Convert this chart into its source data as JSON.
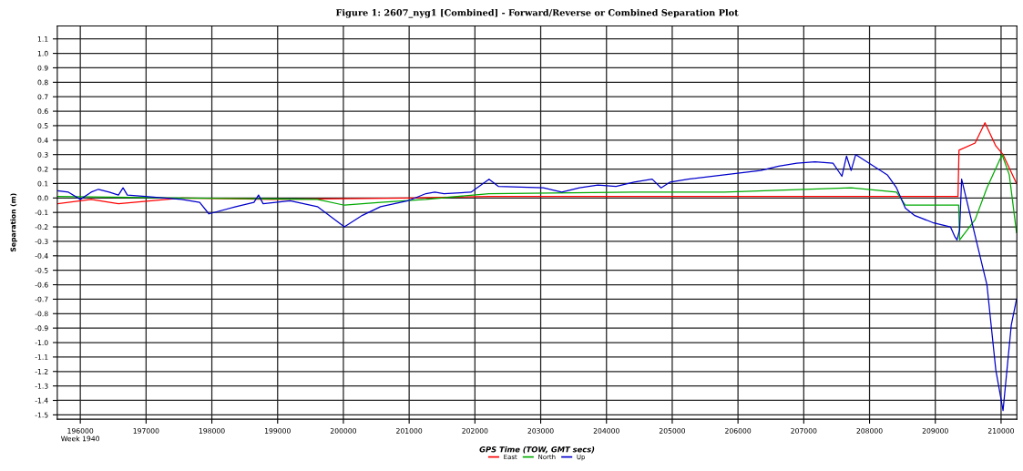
{
  "chart_data": {
    "type": "line",
    "title": "Figure 1: 2607_nyg1 [Combined] - Forward/Reverse or Combined Separation Plot",
    "xlabel": "GPS Time (TOW, GMT secs)",
    "ylabel": "Separation (m)",
    "xlim": [
      195650,
      210240
    ],
    "xticks": [
      {
        "value": 196000,
        "label": "196000\nWeek 1940"
      },
      197000,
      198000,
      199000,
      200000,
      201000,
      202000,
      203000,
      204000,
      205000,
      206000,
      207000,
      208000,
      209000,
      210000
    ],
    "ylim": [
      -1.53,
      1.19
    ],
    "yticks": [
      1.1,
      {
        "value": 1,
        "label": "1.0"
      },
      0.9,
      0.8,
      0.7,
      0.6,
      0.5,
      0.4,
      0.3,
      0.2,
      0.1,
      {
        "value": 0,
        "label": "0.0"
      },
      -0.1,
      -0.2,
      -0.3,
      -0.4,
      -0.5,
      -0.6,
      -0.7,
      -0.8,
      -0.9,
      {
        "value": -1,
        "label": "-1.0"
      },
      -1.1,
      -1.2,
      -1.3,
      -1.4,
      -1.5
    ],
    "grid": true,
    "legend": "bottom",
    "marker": "none",
    "line_style": "solid",
    "series": [
      {
        "name": "East",
        "color": "#ff0000",
        "x": [
          195660,
          196165,
          196580,
          197540,
          198915,
          200980,
          202215,
          204420,
          207170,
          208545,
          209345,
          209360,
          209605,
          209755,
          209920,
          210030,
          210235
        ],
        "values": [
          -0.04,
          -0.01,
          -0.04,
          0,
          -0.01,
          0,
          0.01,
          0.01,
          0.01,
          0.01,
          0.01,
          0.33,
          0.38,
          0.52,
          0.36,
          0.3,
          0.1
        ]
      },
      {
        "name": "North",
        "color": "#00aa00",
        "x": [
          195660,
          197540,
          199605,
          200015,
          200565,
          201255,
          202215,
          204420,
          205795,
          207720,
          208410,
          208545,
          209355,
          209370,
          209605,
          209785,
          210015,
          210125,
          210235
        ],
        "values": [
          0.01,
          0,
          -0.01,
          -0.05,
          -0.03,
          -0.01,
          0.03,
          0.04,
          0.04,
          0.07,
          0.04,
          -0.05,
          -0.05,
          -0.29,
          -0.15,
          0.07,
          0.3,
          0.16,
          -0.24
        ]
      },
      {
        "name": "Up",
        "color": "#0000cc",
        "x": [
          195660,
          195820,
          196000,
          196165,
          196275,
          196440,
          196580,
          196650,
          196715,
          196990,
          197540,
          197815,
          197955,
          198365,
          198640,
          198710,
          198780,
          199190,
          199605,
          200015,
          200290,
          200565,
          200980,
          201255,
          201390,
          201530,
          201940,
          202215,
          202355,
          203040,
          203320,
          203590,
          203870,
          204145,
          204420,
          204695,
          204830,
          204970,
          205245,
          205795,
          206345,
          206620,
          206895,
          207170,
          207445,
          207580,
          207650,
          207720,
          207790,
          207995,
          208270,
          208410,
          208545,
          208680,
          208960,
          209230,
          209300,
          209330,
          209370,
          209400,
          209605,
          209785,
          209920,
          210030,
          210155,
          210235
        ],
        "values": [
          0.05,
          0.04,
          -0.01,
          0.04,
          0.06,
          0.04,
          0.02,
          0.07,
          0.02,
          0.01,
          -0.01,
          -0.03,
          -0.11,
          -0.06,
          -0.03,
          0.02,
          -0.04,
          -0.02,
          -0.06,
          -0.2,
          -0.12,
          -0.06,
          -0.02,
          0.03,
          0.04,
          0.03,
          0.04,
          0.13,
          0.08,
          0.07,
          0.04,
          0.07,
          0.09,
          0.08,
          0.11,
          0.13,
          0.07,
          0.11,
          0.13,
          0.16,
          0.19,
          0.22,
          0.24,
          0.25,
          0.24,
          0.15,
          0.29,
          0.19,
          0.3,
          0.24,
          0.16,
          0.07,
          -0.07,
          -0.12,
          -0.17,
          -0.2,
          -0.27,
          -0.29,
          -0.22,
          0.13,
          -0.26,
          -0.6,
          -1.19,
          -1.47,
          -0.88,
          -0.7
        ]
      }
    ]
  }
}
